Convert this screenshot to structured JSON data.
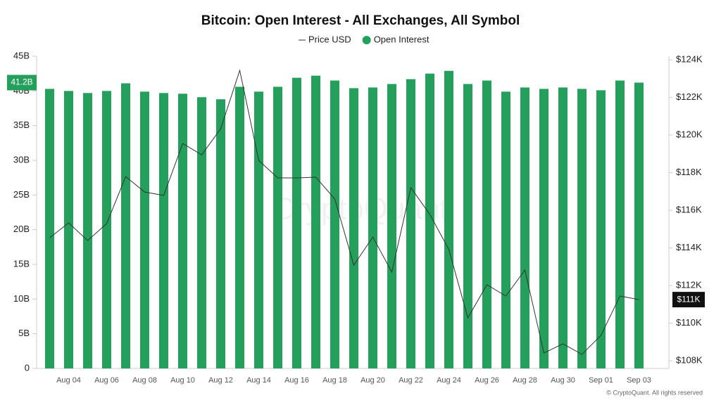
{
  "chart_data": {
    "type": "bar-line",
    "title": "Bitcoin: Open Interest - All Exchanges, All Symbol",
    "watermark": "CryptoQuant",
    "footer": "© CryptoQuant. All rights reserved",
    "legend": "top",
    "categories": [
      null,
      "Aug 04",
      null,
      "Aug 06",
      null,
      "Aug 08",
      null,
      "Aug 10",
      null,
      "Aug 12",
      null,
      "Aug 14",
      null,
      "Aug 16",
      null,
      "Aug 18",
      null,
      "Aug 20",
      null,
      "Aug 22",
      null,
      "Aug 24",
      null,
      "Aug 26",
      null,
      "Aug 28",
      null,
      "Aug 30",
      null,
      "Sep 01",
      null,
      "Sep 03"
    ],
    "series": [
      {
        "name": "Price USD",
        "type": "line",
        "axis": "y2",
        "color": "#333333",
        "end_label": "$111K",
        "values": [
          114540,
          115330,
          114390,
          115290,
          117790,
          116970,
          116790,
          119550,
          118950,
          120340,
          123440,
          118650,
          117720,
          117720,
          117760,
          116600,
          113080,
          114580,
          112710,
          117200,
          115780,
          113910,
          110280,
          112040,
          111440,
          112820,
          108410,
          108900,
          108340,
          109350,
          111440,
          111250
        ]
      },
      {
        "name": "Open Interest",
        "type": "bar",
        "color": "#24a05c",
        "end_label": "41.2B",
        "values": [
          40.3,
          40.0,
          39.7,
          40.0,
          41.1,
          39.9,
          39.7,
          39.6,
          39.1,
          38.8,
          40.6,
          39.9,
          40.6,
          41.9,
          42.2,
          41.5,
          40.4,
          40.5,
          41.0,
          41.7,
          42.5,
          42.9,
          41.0,
          41.5,
          39.9,
          40.5,
          40.3,
          40.5,
          40.3,
          40.1,
          41.5,
          41.2
        ]
      }
    ],
    "ylim": [
      0,
      45
    ],
    "yticks": [
      0,
      {
        "value": 5,
        "label": "5B"
      },
      {
        "value": 10,
        "label": "10B"
      },
      {
        "value": 15,
        "label": "15B"
      },
      {
        "value": 20,
        "label": "20B"
      },
      {
        "value": 25,
        "label": "25B"
      },
      {
        "value": 30,
        "label": "30B"
      },
      {
        "value": 35,
        "label": "35B"
      },
      {
        "value": 40,
        "label": "40B"
      },
      {
        "value": 45,
        "label": "45B"
      }
    ],
    "y2lim": [
      107590,
      124190
    ],
    "y2ticks": [
      {
        "value": 108000,
        "label": "$108K"
      },
      {
        "value": 110000,
        "label": "$110K"
      },
      {
        "value": 112000,
        "label": "$112K"
      },
      {
        "value": 114000,
        "label": "$114K"
      },
      {
        "value": 116000,
        "label": "$116K"
      },
      {
        "value": 118000,
        "label": "$118K"
      },
      {
        "value": 120000,
        "label": "$120K"
      },
      {
        "value": 122000,
        "label": "$122K"
      },
      {
        "value": 124000,
        "label": "$124K"
      }
    ]
  }
}
